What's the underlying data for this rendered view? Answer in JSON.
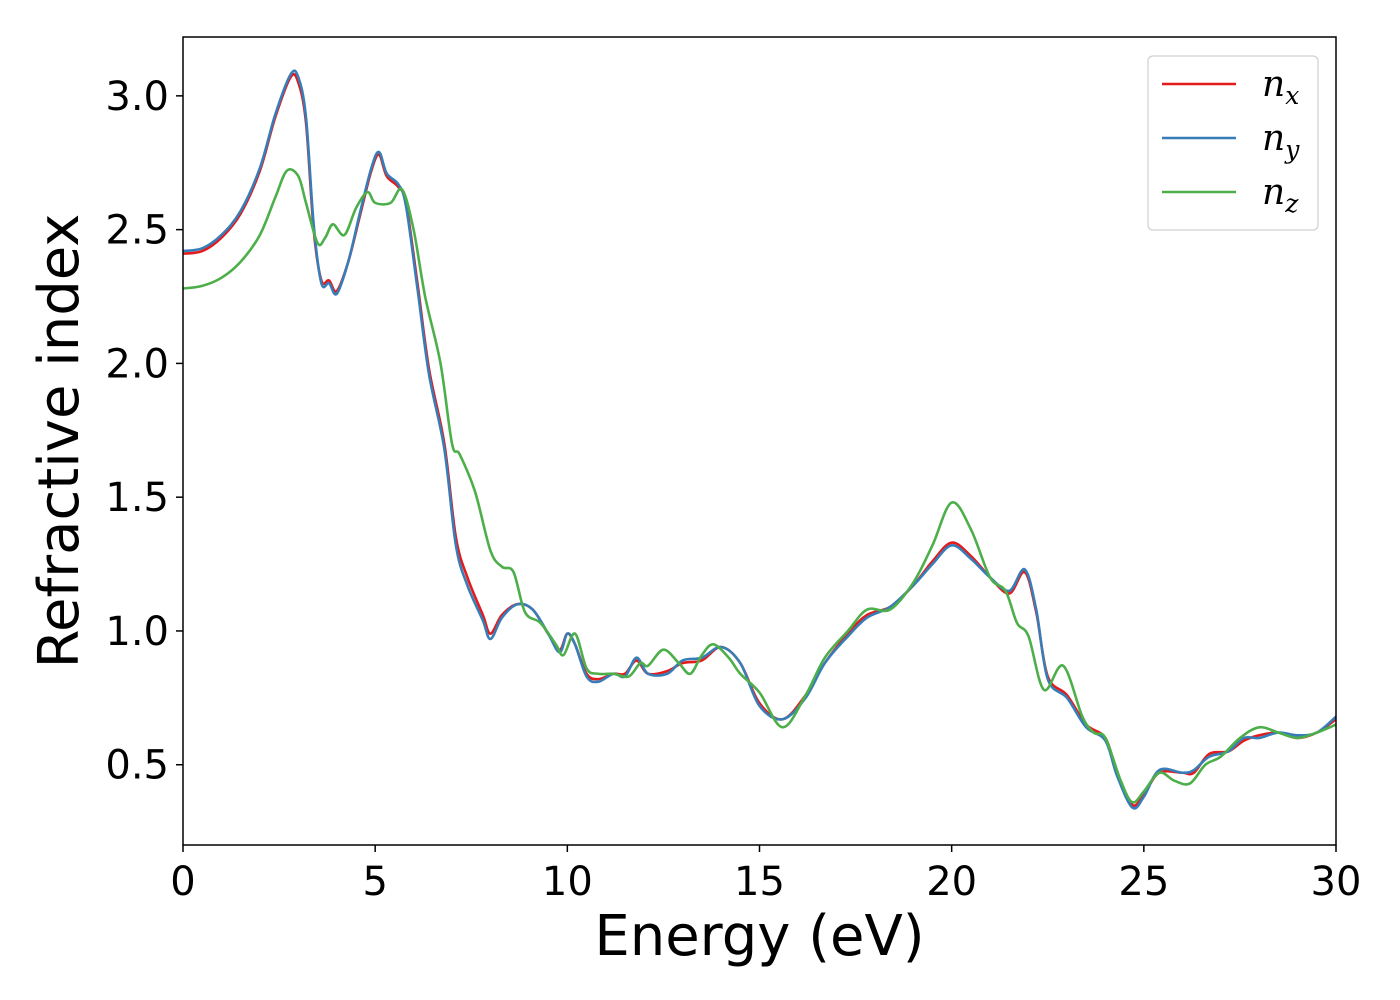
{
  "chart_data": {
    "type": "line",
    "xlabel": "Energy (eV)",
    "ylabel": "Refractive index",
    "xlim": [
      0,
      30
    ],
    "ylim": [
      0.2,
      3.22
    ],
    "xticks": [
      0,
      5,
      10,
      15,
      20,
      25,
      30
    ],
    "yticks": [
      0.5,
      1.0,
      1.5,
      2.0,
      2.5,
      3.0
    ],
    "xtick_labels": [
      "0",
      "5",
      "10",
      "15",
      "20",
      "25",
      "30"
    ],
    "ytick_labels": [
      "0.5",
      "1.0",
      "1.5",
      "2.0",
      "2.5",
      "3.0"
    ],
    "grid": false,
    "legend_position": "top-right",
    "series": [
      {
        "name": "n",
        "sub": "x",
        "color": "#e41a1c",
        "points": [
          [
            0,
            2.41
          ],
          [
            0.5,
            2.42
          ],
          [
            1.0,
            2.47
          ],
          [
            1.5,
            2.56
          ],
          [
            2.0,
            2.72
          ],
          [
            2.4,
            2.92
          ],
          [
            2.8,
            3.07
          ],
          [
            3.0,
            3.05
          ],
          [
            3.2,
            2.9
          ],
          [
            3.4,
            2.5
          ],
          [
            3.6,
            2.31
          ],
          [
            3.8,
            2.31
          ],
          [
            4.0,
            2.27
          ],
          [
            4.3,
            2.38
          ],
          [
            4.6,
            2.55
          ],
          [
            4.9,
            2.72
          ],
          [
            5.1,
            2.78
          ],
          [
            5.3,
            2.7
          ],
          [
            5.6,
            2.66
          ],
          [
            5.8,
            2.6
          ],
          [
            6.1,
            2.3
          ],
          [
            6.4,
            1.98
          ],
          [
            6.8,
            1.7
          ],
          [
            7.1,
            1.35
          ],
          [
            7.4,
            1.2
          ],
          [
            7.8,
            1.06
          ],
          [
            8.0,
            0.99
          ],
          [
            8.3,
            1.06
          ],
          [
            8.7,
            1.1
          ],
          [
            9.1,
            1.08
          ],
          [
            9.5,
            0.99
          ],
          [
            9.8,
            0.93
          ],
          [
            10.0,
            0.99
          ],
          [
            10.2,
            0.95
          ],
          [
            10.5,
            0.84
          ],
          [
            10.8,
            0.82
          ],
          [
            11.2,
            0.84
          ],
          [
            11.5,
            0.84
          ],
          [
            11.8,
            0.89
          ],
          [
            12.1,
            0.84
          ],
          [
            12.6,
            0.85
          ],
          [
            13.0,
            0.88
          ],
          [
            13.5,
            0.89
          ],
          [
            14.0,
            0.94
          ],
          [
            14.5,
            0.88
          ],
          [
            15.0,
            0.73
          ],
          [
            15.6,
            0.67
          ],
          [
            16.2,
            0.76
          ],
          [
            16.7,
            0.88
          ],
          [
            17.3,
            0.99
          ],
          [
            17.8,
            1.06
          ],
          [
            18.4,
            1.09
          ],
          [
            19.0,
            1.17
          ],
          [
            19.5,
            1.26
          ],
          [
            20.0,
            1.33
          ],
          [
            20.5,
            1.28
          ],
          [
            21.0,
            1.2
          ],
          [
            21.5,
            1.14
          ],
          [
            21.9,
            1.22
          ],
          [
            22.2,
            1.07
          ],
          [
            22.5,
            0.83
          ],
          [
            23.0,
            0.76
          ],
          [
            23.5,
            0.65
          ],
          [
            24.0,
            0.6
          ],
          [
            24.3,
            0.47
          ],
          [
            24.7,
            0.35
          ],
          [
            25.0,
            0.39
          ],
          [
            25.4,
            0.47
          ],
          [
            26.0,
            0.47
          ],
          [
            26.3,
            0.47
          ],
          [
            26.7,
            0.54
          ],
          [
            27.2,
            0.55
          ],
          [
            27.6,
            0.59
          ],
          [
            28.0,
            0.61
          ],
          [
            28.5,
            0.62
          ],
          [
            29.0,
            0.6
          ],
          [
            29.5,
            0.62
          ],
          [
            30,
            0.67
          ]
        ]
      },
      {
        "name": "n",
        "sub": "y",
        "color": "#377eb8",
        "points": [
          [
            0,
            2.42
          ],
          [
            0.5,
            2.43
          ],
          [
            1.0,
            2.48
          ],
          [
            1.5,
            2.57
          ],
          [
            2.0,
            2.73
          ],
          [
            2.4,
            2.93
          ],
          [
            2.8,
            3.08
          ],
          [
            3.0,
            3.07
          ],
          [
            3.2,
            2.92
          ],
          [
            3.4,
            2.52
          ],
          [
            3.6,
            2.3
          ],
          [
            3.8,
            2.3
          ],
          [
            4.0,
            2.26
          ],
          [
            4.3,
            2.38
          ],
          [
            4.6,
            2.56
          ],
          [
            4.9,
            2.73
          ],
          [
            5.1,
            2.79
          ],
          [
            5.3,
            2.71
          ],
          [
            5.6,
            2.67
          ],
          [
            5.8,
            2.59
          ],
          [
            6.1,
            2.28
          ],
          [
            6.4,
            1.96
          ],
          [
            6.8,
            1.68
          ],
          [
            7.1,
            1.32
          ],
          [
            7.4,
            1.17
          ],
          [
            7.8,
            1.04
          ],
          [
            8.0,
            0.97
          ],
          [
            8.3,
            1.05
          ],
          [
            8.7,
            1.1
          ],
          [
            9.1,
            1.08
          ],
          [
            9.5,
            0.99
          ],
          [
            9.8,
            0.92
          ],
          [
            10.0,
            0.99
          ],
          [
            10.2,
            0.95
          ],
          [
            10.5,
            0.83
          ],
          [
            10.8,
            0.81
          ],
          [
            11.2,
            0.84
          ],
          [
            11.5,
            0.83
          ],
          [
            11.8,
            0.9
          ],
          [
            12.1,
            0.84
          ],
          [
            12.6,
            0.84
          ],
          [
            13.0,
            0.89
          ],
          [
            13.5,
            0.9
          ],
          [
            14.0,
            0.94
          ],
          [
            14.5,
            0.88
          ],
          [
            15.0,
            0.72
          ],
          [
            15.6,
            0.67
          ],
          [
            16.2,
            0.75
          ],
          [
            16.7,
            0.88
          ],
          [
            17.3,
            0.98
          ],
          [
            17.8,
            1.05
          ],
          [
            18.4,
            1.09
          ],
          [
            19.0,
            1.17
          ],
          [
            19.5,
            1.25
          ],
          [
            20.0,
            1.32
          ],
          [
            20.5,
            1.27
          ],
          [
            21.0,
            1.2
          ],
          [
            21.5,
            1.15
          ],
          [
            21.9,
            1.23
          ],
          [
            22.2,
            1.08
          ],
          [
            22.5,
            0.82
          ],
          [
            23.0,
            0.75
          ],
          [
            23.5,
            0.64
          ],
          [
            24.0,
            0.59
          ],
          [
            24.3,
            0.46
          ],
          [
            24.7,
            0.34
          ],
          [
            25.0,
            0.38
          ],
          [
            25.4,
            0.48
          ],
          [
            26.0,
            0.47
          ],
          [
            26.3,
            0.48
          ],
          [
            26.7,
            0.53
          ],
          [
            27.2,
            0.55
          ],
          [
            27.6,
            0.6
          ],
          [
            28.0,
            0.6
          ],
          [
            28.5,
            0.62
          ],
          [
            29.0,
            0.61
          ],
          [
            29.5,
            0.62
          ],
          [
            30,
            0.68
          ]
        ]
      },
      {
        "name": "n",
        "sub": "z",
        "color": "#4daf4a",
        "points": [
          [
            0,
            2.28
          ],
          [
            0.5,
            2.29
          ],
          [
            1.0,
            2.32
          ],
          [
            1.5,
            2.38
          ],
          [
            2.0,
            2.48
          ],
          [
            2.4,
            2.62
          ],
          [
            2.7,
            2.72
          ],
          [
            3.0,
            2.7
          ],
          [
            3.2,
            2.6
          ],
          [
            3.5,
            2.45
          ],
          [
            3.7,
            2.47
          ],
          [
            3.9,
            2.52
          ],
          [
            4.2,
            2.48
          ],
          [
            4.5,
            2.58
          ],
          [
            4.8,
            2.64
          ],
          [
            5.0,
            2.6
          ],
          [
            5.4,
            2.6
          ],
          [
            5.7,
            2.65
          ],
          [
            6.0,
            2.5
          ],
          [
            6.3,
            2.25
          ],
          [
            6.7,
            2.0
          ],
          [
            7.0,
            1.7
          ],
          [
            7.2,
            1.66
          ],
          [
            7.6,
            1.52
          ],
          [
            8.0,
            1.3
          ],
          [
            8.3,
            1.24
          ],
          [
            8.6,
            1.22
          ],
          [
            8.9,
            1.07
          ],
          [
            9.3,
            1.03
          ],
          [
            9.7,
            0.95
          ],
          [
            9.9,
            0.91
          ],
          [
            10.2,
            0.99
          ],
          [
            10.5,
            0.86
          ],
          [
            10.8,
            0.84
          ],
          [
            11.2,
            0.84
          ],
          [
            11.6,
            0.83
          ],
          [
            11.9,
            0.88
          ],
          [
            12.1,
            0.87
          ],
          [
            12.5,
            0.93
          ],
          [
            12.9,
            0.88
          ],
          [
            13.2,
            0.84
          ],
          [
            13.5,
            0.91
          ],
          [
            13.8,
            0.95
          ],
          [
            14.2,
            0.9
          ],
          [
            14.5,
            0.84
          ],
          [
            15.0,
            0.77
          ],
          [
            15.6,
            0.64
          ],
          [
            16.2,
            0.76
          ],
          [
            16.7,
            0.9
          ],
          [
            17.3,
            1.0
          ],
          [
            17.8,
            1.08
          ],
          [
            18.4,
            1.08
          ],
          [
            19.0,
            1.18
          ],
          [
            19.5,
            1.32
          ],
          [
            20.0,
            1.48
          ],
          [
            20.5,
            1.38
          ],
          [
            21.0,
            1.2
          ],
          [
            21.4,
            1.15
          ],
          [
            21.7,
            1.03
          ],
          [
            22.0,
            0.98
          ],
          [
            22.4,
            0.78
          ],
          [
            22.9,
            0.87
          ],
          [
            23.4,
            0.68
          ],
          [
            23.7,
            0.62
          ],
          [
            24.0,
            0.6
          ],
          [
            24.4,
            0.44
          ],
          [
            24.7,
            0.36
          ],
          [
            25.0,
            0.4
          ],
          [
            25.4,
            0.47
          ],
          [
            25.8,
            0.44
          ],
          [
            26.2,
            0.43
          ],
          [
            26.6,
            0.5
          ],
          [
            27.0,
            0.53
          ],
          [
            27.5,
            0.6
          ],
          [
            28.0,
            0.64
          ],
          [
            28.5,
            0.62
          ],
          [
            29.0,
            0.6
          ],
          [
            29.5,
            0.62
          ],
          [
            30,
            0.65
          ]
        ]
      }
    ]
  }
}
